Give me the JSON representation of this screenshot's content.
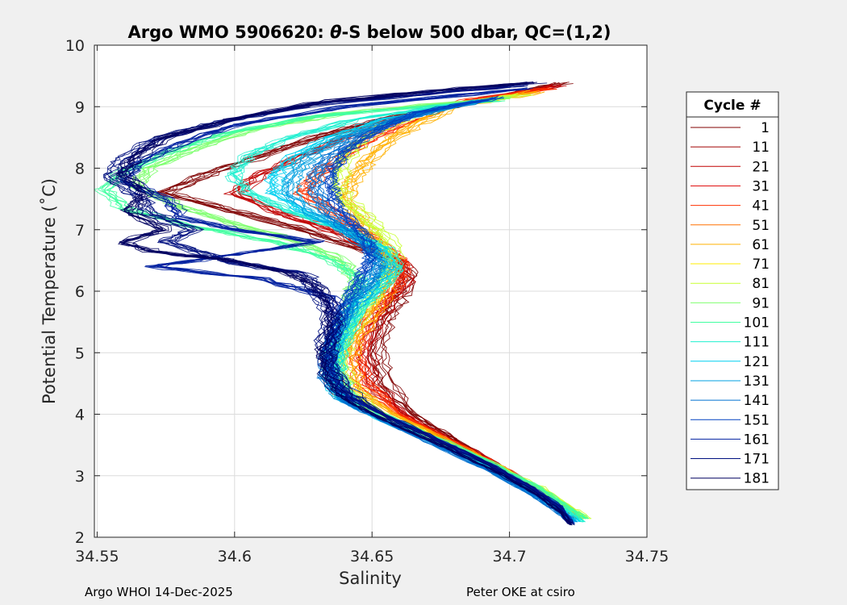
{
  "chart_data": {
    "type": "line",
    "title_prefix": "Argo WMO 5906620: ",
    "title_theta": "θ",
    "title_suffix": "-S below 500 dbar,  QC=(1,2)",
    "xlabel": "Salinity",
    "ylabel": "Potential Temperature (˚C)",
    "xlim": [
      34.549,
      34.75
    ],
    "ylim": [
      2,
      10
    ],
    "xticks": [
      "34.55",
      "34.6",
      "34.65",
      "34.7",
      "34.75"
    ],
    "yticks": [
      "2",
      "3",
      "4",
      "5",
      "6",
      "7",
      "8",
      "9",
      "10"
    ],
    "grid": true,
    "legend_title": "Cycle #",
    "legend_position": "right",
    "series": [
      {
        "name": "1",
        "color": "#800000"
      },
      {
        "name": "11",
        "color": "#a00000"
      },
      {
        "name": "21",
        "color": "#c00000"
      },
      {
        "name": "31",
        "color": "#e01010"
      },
      {
        "name": "41",
        "color": "#ff3000"
      },
      {
        "name": "51",
        "color": "#ff7000"
      },
      {
        "name": "61",
        "color": "#ffb000"
      },
      {
        "name": "71",
        "color": "#ffee00"
      },
      {
        "name": "81",
        "color": "#c8ff30"
      },
      {
        "name": "91",
        "color": "#80ff70"
      },
      {
        "name": "101",
        "color": "#40ffa0"
      },
      {
        "name": "111",
        "color": "#20f0d0"
      },
      {
        "name": "121",
        "color": "#00d0f0"
      },
      {
        "name": "131",
        "color": "#00a0e0"
      },
      {
        "name": "141",
        "color": "#0070d0"
      },
      {
        "name": "151",
        "color": "#0040c0"
      },
      {
        "name": "161",
        "color": "#0020a0"
      },
      {
        "name": "171",
        "color": "#001080"
      },
      {
        "name": "181",
        "color": "#000060"
      }
    ],
    "profiles": [
      {
        "series": 0,
        "t": [
          9.38,
          9.1,
          8.8,
          8.5,
          8.2,
          7.9,
          7.6,
          7.3,
          7.0,
          6.7,
          6.5,
          6.2,
          5.9,
          5.5,
          5.0,
          4.5,
          4.0,
          3.6,
          3.2,
          2.8,
          2.5,
          2.3
        ],
        "s": [
          34.72,
          34.69,
          34.655,
          34.63,
          34.61,
          34.59,
          34.575,
          34.6,
          34.625,
          34.645,
          34.66,
          34.664,
          34.66,
          34.655,
          34.652,
          34.655,
          34.665,
          34.68,
          34.695,
          34.71,
          34.72,
          34.725
        ]
      },
      {
        "series": 2,
        "t": [
          9.35,
          9.1,
          8.8,
          8.5,
          8.2,
          7.9,
          7.6,
          7.3,
          7.0,
          6.7,
          6.5,
          6.2,
          5.9,
          5.5,
          5.0,
          4.5,
          4.0,
          3.6,
          3.2,
          2.8,
          2.5,
          2.3
        ],
        "s": [
          34.718,
          34.688,
          34.66,
          34.64,
          34.625,
          34.61,
          34.6,
          34.615,
          34.635,
          34.65,
          34.66,
          34.663,
          34.658,
          34.652,
          34.648,
          34.65,
          34.662,
          34.678,
          34.695,
          34.71,
          34.72,
          34.725
        ]
      },
      {
        "series": 4,
        "t": [
          9.3,
          9.1,
          8.8,
          8.5,
          8.2,
          7.9,
          7.6,
          7.3,
          7.0,
          6.7,
          6.5,
          6.2,
          5.9,
          5.5,
          5.0,
          4.5,
          4.0,
          3.6,
          3.2,
          2.8,
          2.5,
          2.3
        ],
        "s": [
          34.715,
          34.685,
          34.665,
          34.65,
          34.64,
          34.63,
          34.625,
          34.635,
          34.645,
          34.655,
          34.66,
          34.66,
          34.655,
          34.648,
          34.644,
          34.647,
          34.66,
          34.677,
          34.695,
          34.71,
          34.72,
          34.726
        ]
      },
      {
        "series": 6,
        "t": [
          9.25,
          9.0,
          8.7,
          8.4,
          8.1,
          7.8,
          7.5,
          7.2,
          6.9,
          6.6,
          6.3,
          6.0,
          5.6,
          5.2,
          4.8,
          4.4,
          4.0,
          3.6,
          3.2,
          2.8,
          2.5,
          2.3
        ],
        "s": [
          34.71,
          34.68,
          34.665,
          34.655,
          34.648,
          34.643,
          34.64,
          34.645,
          34.65,
          34.655,
          34.657,
          34.655,
          34.65,
          34.644,
          34.641,
          34.645,
          34.658,
          34.676,
          34.694,
          34.71,
          34.721,
          34.727
        ]
      },
      {
        "series": 8,
        "t": [
          9.2,
          9.0,
          8.7,
          8.4,
          8.1,
          7.8,
          7.5,
          7.2,
          6.9,
          6.6,
          6.3,
          6.0,
          5.6,
          5.2,
          4.8,
          4.4,
          4.0,
          3.6,
          3.2,
          2.8,
          2.5,
          2.3
        ],
        "s": [
          34.705,
          34.675,
          34.655,
          34.645,
          34.64,
          34.638,
          34.64,
          34.648,
          34.655,
          34.658,
          34.656,
          34.652,
          34.646,
          34.64,
          34.638,
          34.642,
          34.655,
          34.674,
          34.694,
          34.712,
          34.722,
          34.729
        ]
      },
      {
        "series": 9,
        "t": [
          9.15,
          8.9,
          8.6,
          8.3,
          8.0,
          7.7,
          7.4,
          7.1,
          6.8,
          6.5,
          6.2,
          5.9,
          5.5,
          5.1,
          4.7,
          4.3,
          4.0,
          3.6,
          3.2,
          2.8,
          2.5,
          2.3
        ],
        "s": [
          34.7,
          34.64,
          34.605,
          34.585,
          34.57,
          34.565,
          34.58,
          34.6,
          34.625,
          34.64,
          34.645,
          34.643,
          34.64,
          34.637,
          34.636,
          34.64,
          34.653,
          34.673,
          34.693,
          34.71,
          34.72,
          34.727
        ]
      },
      {
        "series": 10,
        "t": [
          9.1,
          8.85,
          8.55,
          8.25,
          7.95,
          7.65,
          7.35,
          7.05,
          6.8,
          6.5,
          6.2,
          5.9,
          5.5,
          5.1,
          4.7,
          4.3,
          4.0,
          3.6,
          3.2,
          2.8,
          2.5,
          2.3
        ],
        "s": [
          34.695,
          34.63,
          34.595,
          34.575,
          34.56,
          34.552,
          34.56,
          34.585,
          34.615,
          34.635,
          34.645,
          34.645,
          34.642,
          34.638,
          34.637,
          34.641,
          34.654,
          34.674,
          34.694,
          34.711,
          34.721,
          34.728
        ]
      },
      {
        "series": 11,
        "t": [
          9.1,
          8.8,
          8.5,
          8.2,
          7.9,
          7.6,
          7.3,
          7.0,
          6.7,
          6.4,
          6.1,
          5.8,
          5.4,
          5.0,
          4.6,
          4.2,
          3.9,
          3.5,
          3.1,
          2.7,
          2.4,
          2.25
        ],
        "s": [
          34.69,
          34.645,
          34.62,
          34.605,
          34.6,
          34.605,
          34.62,
          34.64,
          34.655,
          34.66,
          34.655,
          34.648,
          34.642,
          34.638,
          34.637,
          34.642,
          34.655,
          34.675,
          34.695,
          34.712,
          34.722,
          34.727
        ]
      },
      {
        "series": 12,
        "t": [
          9.1,
          8.8,
          8.5,
          8.2,
          7.9,
          7.6,
          7.3,
          7.0,
          6.7,
          6.4,
          6.1,
          5.8,
          5.4,
          5.0,
          4.6,
          4.2,
          3.9,
          3.5,
          3.1,
          2.7,
          2.4,
          2.25
        ],
        "s": [
          34.69,
          34.655,
          34.635,
          34.622,
          34.615,
          34.615,
          34.625,
          34.64,
          34.652,
          34.657,
          34.652,
          34.645,
          34.64,
          34.636,
          34.635,
          34.64,
          34.654,
          34.675,
          34.694,
          34.71,
          34.72,
          34.725
        ]
      },
      {
        "series": 13,
        "t": [
          9.1,
          8.8,
          8.5,
          8.2,
          7.9,
          7.6,
          7.3,
          7.0,
          6.7,
          6.4,
          6.1,
          5.8,
          5.4,
          5.0,
          4.6,
          4.2,
          3.9,
          3.5,
          3.1,
          2.7,
          2.4,
          2.25
        ],
        "s": [
          34.69,
          34.66,
          34.64,
          34.628,
          34.622,
          34.62,
          34.628,
          34.64,
          34.65,
          34.654,
          34.65,
          34.644,
          34.639,
          34.635,
          34.634,
          34.64,
          34.654,
          34.674,
          34.693,
          34.709,
          34.719,
          34.724
        ]
      },
      {
        "series": 14,
        "t": [
          9.1,
          8.8,
          8.5,
          8.2,
          7.9,
          7.6,
          7.3,
          7.0,
          6.7,
          6.4,
          6.1,
          5.8,
          5.4,
          5.0,
          4.6,
          4.2,
          3.9,
          3.5,
          3.1,
          2.7,
          2.4,
          2.22
        ],
        "s": [
          34.69,
          34.66,
          34.645,
          34.635,
          34.63,
          34.63,
          34.634,
          34.642,
          34.65,
          34.652,
          34.648,
          34.642,
          34.638,
          34.634,
          34.634,
          34.64,
          34.654,
          34.673,
          34.692,
          34.708,
          34.718,
          34.723
        ]
      },
      {
        "series": 15,
        "t": [
          9.15,
          8.9,
          8.6,
          8.3,
          8.0,
          7.7,
          7.4,
          7.1,
          6.8,
          6.5,
          6.2,
          5.9,
          5.5,
          5.1,
          4.7,
          4.3,
          4.0,
          3.6,
          3.2,
          2.8,
          2.5,
          2.22
        ],
        "s": [
          34.695,
          34.665,
          34.65,
          34.64,
          34.635,
          34.634,
          34.636,
          34.642,
          34.648,
          34.648,
          34.644,
          34.64,
          34.637,
          34.634,
          34.634,
          34.64,
          34.654,
          34.673,
          34.692,
          34.708,
          34.718,
          34.723
        ]
      },
      {
        "series": 16,
        "t": [
          9.3,
          9.0,
          8.7,
          8.4,
          8.1,
          7.8,
          7.5,
          7.2,
          7.0,
          6.8,
          6.6,
          6.4,
          6.2,
          5.9,
          5.5,
          5.1,
          4.7,
          4.3,
          4.0,
          3.6,
          3.2,
          2.8,
          2.5,
          2.22
        ],
        "s": [
          34.705,
          34.64,
          34.6,
          34.58,
          34.565,
          34.56,
          34.575,
          34.58,
          34.6,
          34.63,
          34.6,
          34.57,
          34.61,
          34.635,
          34.637,
          34.634,
          34.634,
          34.64,
          34.654,
          34.673,
          34.692,
          34.708,
          34.718,
          34.722
        ]
      },
      {
        "series": 17,
        "t": [
          9.35,
          9.05,
          8.75,
          8.45,
          8.15,
          7.85,
          7.55,
          7.25,
          7.0,
          6.8,
          6.6,
          6.45,
          6.3,
          6.0,
          5.6,
          5.2,
          4.8,
          4.4,
          4.0,
          3.6,
          3.2,
          2.8,
          2.5,
          2.22
        ],
        "s": [
          34.705,
          34.63,
          34.595,
          34.57,
          34.56,
          34.555,
          34.565,
          34.57,
          34.585,
          34.575,
          34.59,
          34.6,
          34.625,
          34.63,
          34.636,
          34.633,
          34.634,
          34.64,
          34.654,
          34.673,
          34.692,
          34.708,
          34.718,
          34.722
        ]
      },
      {
        "series": 18,
        "t": [
          9.4,
          9.1,
          8.8,
          8.5,
          8.2,
          7.9,
          7.6,
          7.3,
          7.0,
          6.8,
          6.65,
          6.5,
          6.3,
          6.1,
          5.8,
          5.4,
          5.0,
          4.6,
          4.2,
          3.9,
          3.5,
          3.1,
          2.7,
          2.4,
          2.2
        ],
        "s": [
          34.71,
          34.635,
          34.6,
          34.575,
          34.565,
          34.56,
          34.568,
          34.562,
          34.575,
          34.56,
          34.57,
          34.6,
          34.62,
          34.63,
          34.635,
          34.636,
          34.633,
          34.634,
          34.642,
          34.655,
          34.675,
          34.694,
          34.71,
          34.719,
          34.723
        ]
      }
    ]
  },
  "footer": {
    "left": "Argo WHOI 14-Dec-2025",
    "right": "Peter OKE at csiro"
  }
}
